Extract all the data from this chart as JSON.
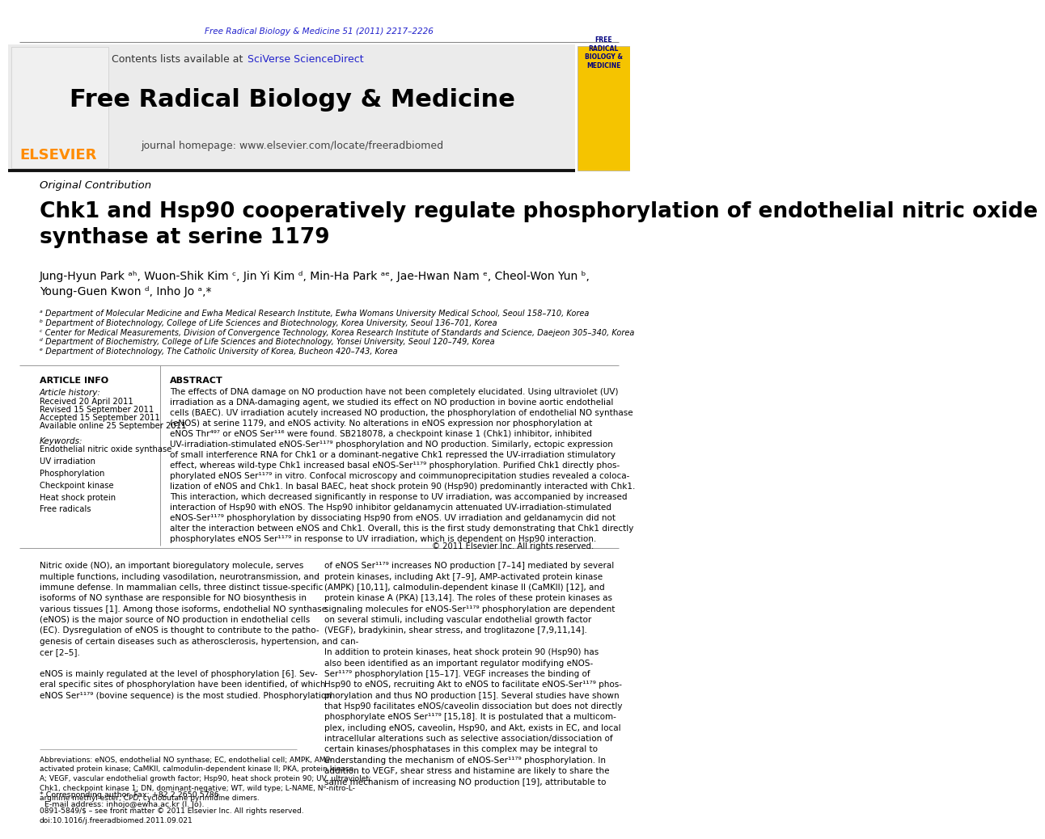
{
  "journal_ref": "Free Radical Biology & Medicine 51 (2011) 2217–2226",
  "contents_line": "Contents lists available at ",
  "sciverse_text": "SciVerse ScienceDirect",
  "journal_name": "Free Radical Biology & Medicine",
  "journal_homepage": "journal homepage: www.elsevier.com/locate/freeradbiomed",
  "section_label": "Original Contribution",
  "title": "Chk1 and Hsp90 cooperatively regulate phosphorylation of endothelial nitric oxide\nsynthase at serine 1179",
  "authors": "Jung-Hyun Park ᵃʰ, Wuon-Shik Kim ᶜ, Jin Yi Kim ᵈ, Min-Ha Park ᵃᵉ, Jae-Hwan Nam ᵉ, Cheol-Won Yun ᵇ,\nYoung-Guen Kwon ᵈ, Inho Jo ᵃ,*",
  "affiliations": [
    "ᵃ Department of Molecular Medicine and Ewha Medical Research Institute, Ewha Womans University Medical School, Seoul 158–710, Korea",
    "ᵇ Department of Biotechnology, College of Life Sciences and Biotechnology, Korea University, Seoul 136–701, Korea",
    "ᶜ Center for Medical Measurements, Division of Convergence Technology, Korea Research Institute of Standards and Science, Daejeon 305–340, Korea",
    "ᵈ Department of Biochemistry, College of Life Sciences and Biotechnology, Yonsei University, Seoul 120–749, Korea",
    "ᵉ Department of Biotechnology, The Catholic University of Korea, Bucheon 420–743, Korea"
  ],
  "article_info_title": "ARTICLE INFO",
  "article_history_label": "Article history:",
  "received": "Received 20 April 2011",
  "revised": "Revised 15 September 2011",
  "accepted": "Accepted 15 September 2011",
  "available_online": "Available online 25 September 2011",
  "keywords_label": "Keywords:",
  "keywords": "Endothelial nitric oxide synthase\nUV irradiation\nPhosphorylation\nCheckpoint kinase\nHeat shock protein\nFree radicals",
  "abstract_title": "ABSTRACT",
  "abstract_text": "The effects of DNA damage on NO production have not been completely elucidated. Using ultraviolet (UV)\nirradiation as a DNA-damaging agent, we studied its effect on NO production in bovine aortic endothelial\ncells (BAEC). UV irradiation acutely increased NO production, the phosphorylation of endothelial NO synthase\n(eNOS) at serine 1179, and eNOS activity. No alterations in eNOS expression nor phosphorylation at\neNOS Thr⁴⁹⁷ or eNOS Ser¹¹⁶ were found. SB218078, a checkpoint kinase 1 (Chk1) inhibitor, inhibited\nUV-irradiation-stimulated eNOS-Ser¹¹⁷⁹ phosphorylation and NO production. Similarly, ectopic expression\nof small interference RNA for Chk1 or a dominant-negative Chk1 repressed the UV-irradiation stimulatory\neffect, whereas wild-type Chk1 increased basal eNOS-Ser¹¹⁷⁹ phosphorylation. Purified Chk1 directly phos-\nphorylated eNOS Ser¹¹⁷⁹ in vitro. Confocal microscopy and coimmunoprecipitation studies revealed a coloca-\nlization of eNOS and Chk1. In basal BAEC, heat shock protein 90 (Hsp90) predominantly interacted with Chk1.\nThis interaction, which decreased significantly in response to UV irradiation, was accompanied by increased\ninteraction of Hsp90 with eNOS. The Hsp90 inhibitor geldanamycin attenuated UV-irradiation-stimulated\neNOS-Ser¹¹⁷⁹ phosphorylation by dissociating Hsp90 from eNOS. UV irradiation and geldanamycin did not\nalter the interaction between eNOS and Chk1. Overall, this is the first study demonstrating that Chk1 directly\nphosphorylates eNOS Ser¹¹⁷⁹ in response to UV irradiation, which is dependent on Hsp90 interaction.",
  "copyright": "© 2011 Elsevier Inc. All rights reserved.",
  "body_col1_text": "Nitric oxide (NO), an important bioregulatory molecule, serves\nmultiple functions, including vasodilation, neurotransmission, and\nimmune defense. In mammalian cells, three distinct tissue-specific\nisoforms of NO synthase are responsible for NO biosynthesis in\nvarious tissues [1]. Among those isoforms, endothelial NO synthase\n(eNOS) is the major source of NO production in endothelial cells\n(EC). Dysregulation of eNOS is thought to contribute to the patho-\ngenesis of certain diseases such as atherosclerosis, hypertension, and can-\ncer [2–5].\n\neNOS is mainly regulated at the level of phosphorylation [6]. Sev-\neral specific sites of phosphorylation have been identified, of which\neNOS Ser¹¹⁷⁹ (bovine sequence) is the most studied. Phosphorylation",
  "body_col2_text": "of eNOS Ser¹¹⁷⁹ increases NO production [7–14] mediated by several\nprotein kinases, including Akt [7–9], AMP-activated protein kinase\n(AMPK) [10,11], calmodulin-dependent kinase II (CaMKII) [12], and\nprotein kinase A (PKA) [13,14]. The roles of these protein kinases as\nsignaling molecules for eNOS-Ser¹¹⁷⁹ phosphorylation are dependent\non several stimuli, including vascular endothelial growth factor\n(VEGF), bradykinin, shear stress, and troglitazone [7,9,11,14].\n\nIn addition to protein kinases, heat shock protein 90 (Hsp90) has\nalso been identified as an important regulator modifying eNOS-\nSer¹¹⁷⁹ phosphorylation [15–17]. VEGF increases the binding of\nHsp90 to eNOS, recruiting Akt to eNOS to facilitate eNOS-Ser¹¹⁷⁹ phos-\nphorylation and thus NO production [15]. Several studies have shown\nthat Hsp90 facilitates eNOS/caveolin dissociation but does not directly\nphosphorylate eNOS Ser¹¹⁷⁹ [15,18]. It is postulated that a multicom-\nplex, including eNOS, caveolin, Hsp90, and Akt, exists in EC, and local\nintracellular alterations such as selective association/dissociation of\ncertain kinases/phosphatases in this complex may be integral to\nunderstanding the mechanism of eNOS-Ser¹¹⁷⁹ phosphorylation. In\naddition to VEGF, shear stress and histamine are likely to share the\nsame mechanism of increasing NO production [19], attributable to",
  "footnote_abbrev": "Abbreviations: eNOS, endothelial NO synthase; EC, endothelial cell; AMPK, AMP-\nactivated protein kinase; CaMKII, calmodulin-dependent kinase II; PKA, protein kinase\nA; VEGF, vascular endothelial growth factor; Hsp90, heat shock protein 90; UV, ultraviolet;\nChk1, checkpoint kinase 1; DN, dominant-negative; WT, wild type; L-NAME, Nᵒ-nitro-L-\narginine methyl ester; CPD, cyclobutane pyrimidine dimers.",
  "footnote_corresponding": "* Corresponding author. Fax: +82 2 2650 5786.\n  E-mail address: inhojo@ewha.ac.kr (I. Jo).",
  "issn_line": "0891-5849/$ – see front matter © 2011 Elsevier Inc. All rights reserved.\ndoi:10.1016/j.freeradbiomed.2011.09.021",
  "header_bg": "#ebebeb",
  "elsevier_color": "#FF8C00",
  "link_color": "#2222CC",
  "title_color": "#000000",
  "text_color": "#000000",
  "gray_color": "#666666"
}
